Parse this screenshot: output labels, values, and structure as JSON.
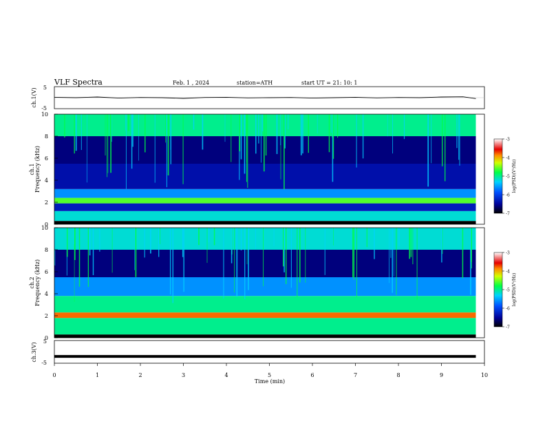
{
  "header": {
    "title": "VLF  Spectra",
    "date": "Feb. 1  , 2024",
    "station": "station=ATH",
    "start": "start  UT  =   21: 10: 1"
  },
  "chart_data": [
    {
      "type": "line",
      "panel": "ch1-waveform",
      "ylabel": "ch.1(V)",
      "xlim": [
        0,
        10
      ],
      "ylim": [
        -5,
        5
      ],
      "yticks": [
        "5",
        "-5"
      ],
      "x": [
        0,
        0.5,
        1,
        1.5,
        2,
        2.5,
        3,
        3.5,
        4,
        4.5,
        5,
        5.5,
        6,
        6.5,
        7,
        7.5,
        8,
        8.5,
        9,
        9.5,
        9.8
      ],
      "y": [
        0.2,
        0.0,
        0.3,
        -0.2,
        0.1,
        0.0,
        -0.3,
        0.1,
        0.2,
        -0.1,
        0.0,
        0.1,
        -0.2,
        0.0,
        0.2,
        -0.1,
        0.1,
        0.0,
        0.3,
        0.4,
        -0.4
      ]
    },
    {
      "type": "heatmap",
      "panel": "ch1-spectrogram",
      "ylabel": "ch.1\nFrequency  (kHz)",
      "xlim": [
        0,
        10
      ],
      "ylim": [
        0,
        10
      ],
      "yticks": [
        "0",
        "2",
        "4",
        "6",
        "8",
        "10"
      ],
      "colorbar": {
        "label": "log(PSD)(V²/Hz)",
        "ticks": [
          "-3",
          "-4",
          "-5",
          "-6",
          "-7"
        ],
        "range": [
          -7,
          -3
        ]
      },
      "bands_khz": [
        {
          "from": 0,
          "to": 0.3,
          "level": -7
        },
        {
          "from": 0.3,
          "to": 1.2,
          "level": -5.2
        },
        {
          "from": 1.2,
          "to": 1.9,
          "level": -6.3
        },
        {
          "from": 1.9,
          "to": 2.4,
          "level": -4.6
        },
        {
          "from": 2.4,
          "to": 3.2,
          "level": -5.6
        },
        {
          "from": 3.2,
          "to": 5.5,
          "level": -6.4
        },
        {
          "from": 5.5,
          "to": 8.0,
          "level": -6.6
        },
        {
          "from": 8.0,
          "to": 10,
          "level": -5.0
        }
      ]
    },
    {
      "type": "heatmap",
      "panel": "ch2-spectrogram",
      "ylabel": "ch.2\nFrequency  (kHz)",
      "xlim": [
        0,
        10
      ],
      "ylim": [
        0,
        10
      ],
      "yticks": [
        "0",
        "2",
        "4",
        "6",
        "8",
        "10"
      ],
      "colorbar": {
        "label": "log(PSD)(V²/Hz)",
        "ticks": [
          "-3",
          "-4",
          "-5",
          "-6",
          "-7"
        ],
        "range": [
          -7,
          -3
        ]
      },
      "bands_khz": [
        {
          "from": 0,
          "to": 0.3,
          "level": -7
        },
        {
          "from": 0.3,
          "to": 1.8,
          "level": -5.0
        },
        {
          "from": 1.8,
          "to": 2.3,
          "level": -3.8
        },
        {
          "from": 2.3,
          "to": 3.8,
          "level": -5.0
        },
        {
          "from": 3.8,
          "to": 5.5,
          "level": -5.6
        },
        {
          "from": 5.5,
          "to": 8.0,
          "level": -6.6
        },
        {
          "from": 8.0,
          "to": 10,
          "level": -5.2
        }
      ]
    },
    {
      "type": "line",
      "panel": "ch3-waveform",
      "ylabel": "ch.3(V)",
      "xlabel": "Time  (min)",
      "xlim": [
        0,
        10
      ],
      "ylim": [
        -5,
        5
      ],
      "yticks": [
        "5",
        "-5"
      ],
      "xticks": [
        "0",
        "1",
        "2",
        "3",
        "4",
        "5",
        "6",
        "7",
        "8",
        "9",
        "10"
      ],
      "x": [
        0,
        9.8
      ],
      "y": [
        -2.0,
        -2.0
      ]
    }
  ]
}
